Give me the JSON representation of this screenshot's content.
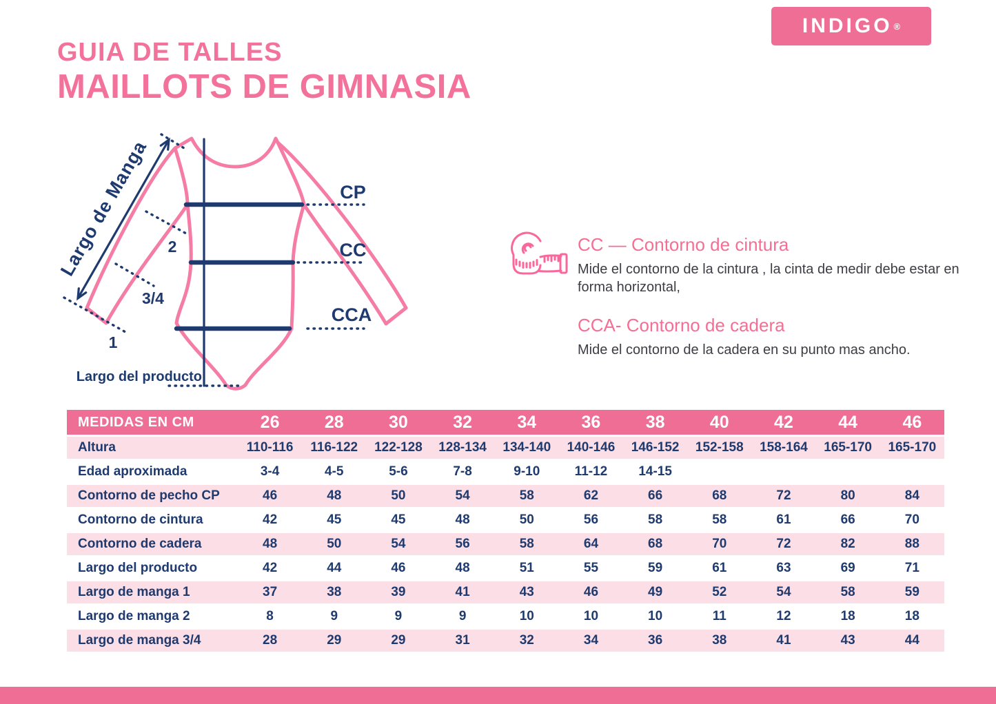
{
  "colors": {
    "pink_primary": "#EE6E96",
    "pink_title": "#F2729B",
    "pink_heading": "#F56E93",
    "pink_row_light": "#FBDEE6",
    "pink_outline": "#F57CA5",
    "pink_icon": "#F9679B",
    "navy_text": "#1E3A6E",
    "body_text": "#3C3C44"
  },
  "logo": {
    "text": "INDIGO",
    "registered": "®"
  },
  "header": {
    "subtitle": "GUIA DE TALLES",
    "title": "MAILLOTS DE GIMNASIA"
  },
  "diagram": {
    "sleeve_label": "Largo de Manga",
    "product_length_label": "Largo del producto",
    "cp_label": "CP",
    "cc_label": "CC",
    "cca_label": "CCA",
    "mark_2": "2",
    "mark_34": "3/4",
    "mark_1": "1"
  },
  "measure_info": {
    "blocks": [
      {
        "heading": "CC — Contorno de cintura",
        "description": "Mide el contorno de la cintura , la cinta de medir debe estar en forma horizontal,"
      },
      {
        "heading": "CCA- Contorno de cadera",
        "description": "Mide el contorno de la cadera en su punto mas ancho."
      }
    ]
  },
  "table": {
    "header_label": "MEDIDAS EN CM",
    "sizes": [
      "26",
      "28",
      "30",
      "32",
      "34",
      "36",
      "38",
      "40",
      "42",
      "44",
      "46"
    ],
    "rows": [
      {
        "label": "Altura",
        "values": [
          "110-116",
          "116-122",
          "122-128",
          "128-134",
          "134-140",
          "140-146",
          "146-152",
          "152-158",
          "158-164",
          "165-170",
          "165-170"
        ]
      },
      {
        "label": "Edad aproximada",
        "values": [
          "3-4",
          "4-5",
          "5-6",
          "7-8",
          "9-10",
          "11-12",
          "14-15",
          "",
          "",
          "",
          ""
        ]
      },
      {
        "label": "Contorno de pecho CP",
        "values": [
          "46",
          "48",
          "50",
          "54",
          "58",
          "62",
          "66",
          "68",
          "72",
          "80",
          "84"
        ]
      },
      {
        "label": "Contorno de cintura",
        "values": [
          "42",
          "45",
          "45",
          "48",
          "50",
          "56",
          "58",
          "58",
          "61",
          "66",
          "70"
        ]
      },
      {
        "label": "Contorno de cadera",
        "values": [
          "48",
          "50",
          "54",
          "56",
          "58",
          "64",
          "68",
          "70",
          "72",
          "82",
          "88"
        ]
      },
      {
        "label": "Largo del producto",
        "values": [
          "42",
          "44",
          "46",
          "48",
          "51",
          "55",
          "59",
          "61",
          "63",
          "69",
          "71"
        ]
      },
      {
        "label": "Largo de manga 1",
        "values": [
          "37",
          "38",
          "39",
          "41",
          "43",
          "46",
          "49",
          "52",
          "54",
          "58",
          "59"
        ]
      },
      {
        "label": "Largo de manga 2",
        "values": [
          "8",
          "9",
          "9",
          "9",
          "10",
          "10",
          "10",
          "11",
          "12",
          "18",
          "18"
        ]
      },
      {
        "label": "Largo de manga 3/4",
        "values": [
          "28",
          "29",
          "29",
          "31",
          "32",
          "34",
          "36",
          "38",
          "41",
          "43",
          "44"
        ]
      }
    ]
  }
}
